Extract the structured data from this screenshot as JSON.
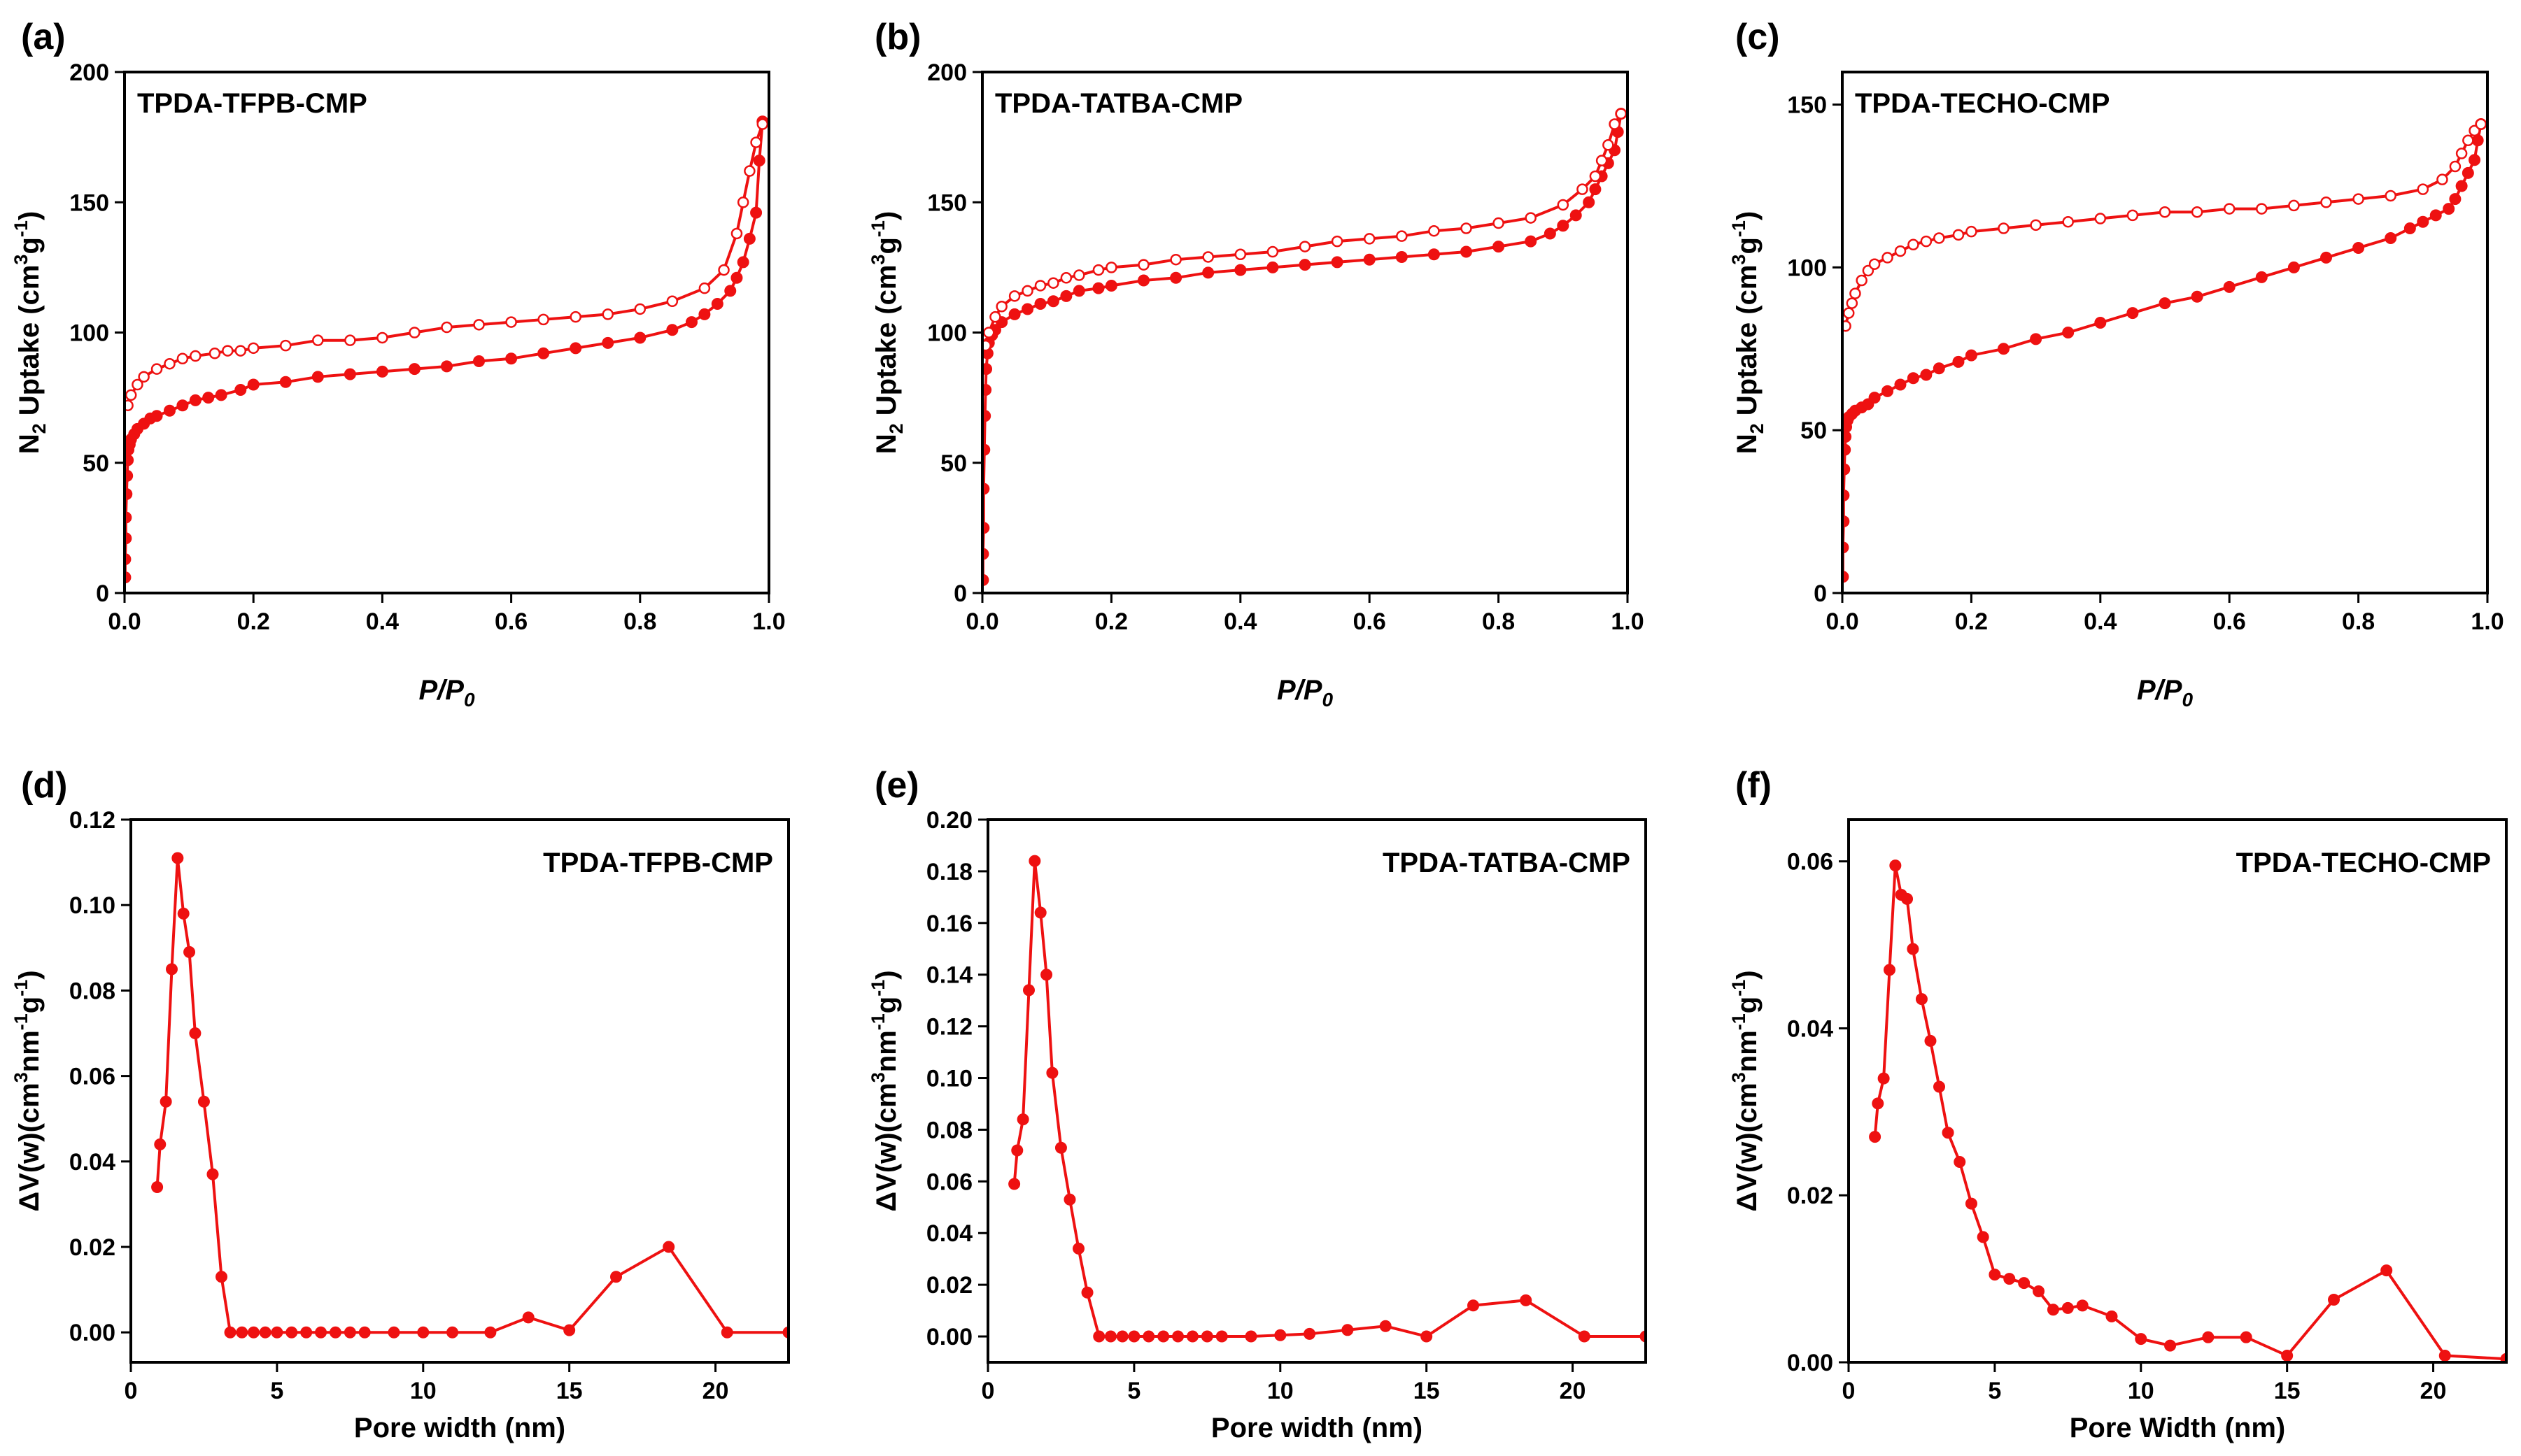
{
  "style": {
    "series_color": "#ee1111",
    "axis_color": "#000000",
    "background": "#ffffff"
  },
  "chart_data": [
    {
      "type": "line",
      "panel_label": "(a)",
      "title": "TPDA-TFPB-CMP",
      "title_position": "top-left",
      "xlabel_main": "P/P",
      "xlabel_sub": "0",
      "ylabel_parts": [
        "N",
        "2",
        " Uptake (cm",
        "3",
        "g",
        "-1",
        ")"
      ],
      "xlim": [
        0,
        1.0
      ],
      "ylim": [
        0,
        200
      ],
      "xticks": [
        0,
        0.2,
        0.4,
        0.6,
        0.8,
        1.0
      ],
      "xtick_labels": [
        "0.0",
        "0.2",
        "0.4",
        "0.6",
        "0.8",
        "1.0"
      ],
      "yticks": [
        0,
        50,
        100,
        150,
        200
      ],
      "ytick_labels": [
        "0",
        "50",
        "100",
        "150",
        "200"
      ],
      "series": [
        {
          "name": "adsorption",
          "marker": "filled",
          "x": [
            0.001,
            0.001,
            0.002,
            0.002,
            0.003,
            0.004,
            0.005,
            0.006,
            0.008,
            0.01,
            0.015,
            0.02,
            0.03,
            0.04,
            0.05,
            0.07,
            0.09,
            0.11,
            0.13,
            0.15,
            0.18,
            0.2,
            0.25,
            0.3,
            0.35,
            0.4,
            0.45,
            0.5,
            0.55,
            0.6,
            0.65,
            0.7,
            0.75,
            0.8,
            0.85,
            0.88,
            0.9,
            0.92,
            0.94,
            0.95,
            0.96,
            0.97,
            0.98,
            0.985,
            0.99
          ],
          "y": [
            6,
            13,
            21,
            29,
            38,
            45,
            51,
            55,
            57,
            59,
            61,
            63,
            65,
            67,
            68,
            70,
            72,
            74,
            75,
            76,
            78,
            80,
            81,
            83,
            84,
            85,
            86,
            87,
            89,
            90,
            92,
            94,
            96,
            98,
            101,
            104,
            107,
            111,
            116,
            121,
            127,
            136,
            146,
            166,
            181
          ]
        },
        {
          "name": "desorption",
          "marker": "open",
          "x": [
            0.005,
            0.01,
            0.02,
            0.03,
            0.05,
            0.07,
            0.09,
            0.11,
            0.14,
            0.16,
            0.18,
            0.2,
            0.25,
            0.3,
            0.35,
            0.4,
            0.45,
            0.5,
            0.55,
            0.6,
            0.65,
            0.7,
            0.75,
            0.8,
            0.85,
            0.9,
            0.93,
            0.95,
            0.96,
            0.97,
            0.98,
            0.99
          ],
          "y": [
            72,
            76,
            80,
            83,
            86,
            88,
            90,
            91,
            92,
            93,
            93,
            94,
            95,
            97,
            97,
            98,
            100,
            102,
            103,
            104,
            105,
            106,
            107,
            109,
            112,
            117,
            124,
            138,
            150,
            162,
            173,
            180
          ]
        }
      ]
    },
    {
      "type": "line",
      "panel_label": "(b)",
      "title": "TPDA-TATBA-CMP",
      "title_position": "top-left",
      "xlabel_main": "P/P",
      "xlabel_sub": "0",
      "ylabel_parts": [
        "N",
        "2",
        " Uptake (cm",
        "3",
        "g",
        "-1",
        ")"
      ],
      "xlim": [
        0,
        1.0
      ],
      "ylim": [
        0,
        200
      ],
      "xticks": [
        0,
        0.2,
        0.4,
        0.6,
        0.8,
        1.0
      ],
      "xtick_labels": [
        "0.0",
        "0.2",
        "0.4",
        "0.6",
        "0.8",
        "1.0"
      ],
      "yticks": [
        0,
        50,
        100,
        150,
        200
      ],
      "ytick_labels": [
        "0",
        "50",
        "100",
        "150",
        "200"
      ],
      "series": [
        {
          "name": "adsorption",
          "marker": "filled",
          "x": [
            0.001,
            0.001,
            0.002,
            0.002,
            0.003,
            0.004,
            0.005,
            0.006,
            0.008,
            0.01,
            0.015,
            0.02,
            0.03,
            0.05,
            0.07,
            0.09,
            0.11,
            0.13,
            0.15,
            0.18,
            0.2,
            0.25,
            0.3,
            0.35,
            0.4,
            0.45,
            0.5,
            0.55,
            0.6,
            0.65,
            0.7,
            0.75,
            0.8,
            0.85,
            0.88,
            0.9,
            0.92,
            0.94,
            0.95,
            0.96,
            0.97,
            0.98,
            0.985,
            0.99
          ],
          "y": [
            5,
            15,
            25,
            40,
            55,
            68,
            78,
            86,
            92,
            96,
            99,
            101,
            104,
            107,
            109,
            111,
            112,
            114,
            116,
            117,
            118,
            120,
            121,
            123,
            124,
            125,
            126,
            127,
            128,
            129,
            130,
            131,
            133,
            135,
            138,
            141,
            145,
            150,
            155,
            160,
            165,
            170,
            177,
            184
          ]
        },
        {
          "name": "desorption",
          "marker": "open",
          "x": [
            0.005,
            0.01,
            0.02,
            0.03,
            0.05,
            0.07,
            0.09,
            0.11,
            0.13,
            0.15,
            0.18,
            0.2,
            0.25,
            0.3,
            0.35,
            0.4,
            0.45,
            0.5,
            0.55,
            0.6,
            0.65,
            0.7,
            0.75,
            0.8,
            0.85,
            0.9,
            0.93,
            0.95,
            0.96,
            0.97,
            0.98,
            0.99
          ],
          "y": [
            95,
            100,
            106,
            110,
            114,
            116,
            118,
            119,
            121,
            122,
            124,
            125,
            126,
            128,
            129,
            130,
            131,
            133,
            135,
            136,
            137,
            139,
            140,
            142,
            144,
            149,
            155,
            160,
            166,
            172,
            180,
            184
          ]
        }
      ]
    },
    {
      "type": "line",
      "panel_label": "(c)",
      "title": "TPDA-TECHO-CMP",
      "title_position": "top-left",
      "xlabel_main": "P/P",
      "xlabel_sub": "0",
      "ylabel_parts": [
        "N",
        "2",
        " Uptake (cm",
        "3",
        "g",
        "-1",
        ")"
      ],
      "xlim": [
        0,
        1.0
      ],
      "ylim": [
        0,
        160
      ],
      "xticks": [
        0,
        0.2,
        0.4,
        0.6,
        0.8,
        1.0
      ],
      "xtick_labels": [
        "0.0",
        "0.2",
        "0.4",
        "0.6",
        "0.8",
        "1.0"
      ],
      "yticks": [
        0,
        50,
        100,
        150
      ],
      "ytick_labels": [
        "0",
        "50",
        "100",
        "150"
      ],
      "series": [
        {
          "name": "adsorption",
          "marker": "filled",
          "x": [
            0.001,
            0.001,
            0.002,
            0.002,
            0.003,
            0.004,
            0.005,
            0.006,
            0.008,
            0.01,
            0.015,
            0.02,
            0.03,
            0.04,
            0.05,
            0.07,
            0.09,
            0.11,
            0.13,
            0.15,
            0.18,
            0.2,
            0.25,
            0.3,
            0.35,
            0.4,
            0.45,
            0.5,
            0.55,
            0.6,
            0.65,
            0.7,
            0.75,
            0.8,
            0.85,
            0.88,
            0.9,
            0.92,
            0.94,
            0.95,
            0.96,
            0.97,
            0.98,
            0.985,
            0.99
          ],
          "y": [
            5,
            14,
            22,
            30,
            38,
            44,
            48,
            51,
            53,
            54,
            55,
            56,
            57,
            58,
            60,
            62,
            64,
            66,
            67,
            69,
            71,
            73,
            75,
            78,
            80,
            83,
            86,
            89,
            91,
            94,
            97,
            100,
            103,
            106,
            109,
            112,
            114,
            116,
            118,
            121,
            125,
            129,
            133,
            139,
            144
          ]
        },
        {
          "name": "desorption",
          "marker": "open",
          "x": [
            0.005,
            0.01,
            0.015,
            0.02,
            0.03,
            0.04,
            0.05,
            0.07,
            0.09,
            0.11,
            0.13,
            0.15,
            0.18,
            0.2,
            0.25,
            0.3,
            0.35,
            0.4,
            0.45,
            0.5,
            0.55,
            0.6,
            0.65,
            0.7,
            0.75,
            0.8,
            0.85,
            0.9,
            0.93,
            0.95,
            0.96,
            0.97,
            0.98,
            0.99
          ],
          "y": [
            82,
            86,
            89,
            92,
            96,
            99,
            101,
            103,
            105,
            107,
            108,
            109,
            110,
            111,
            112,
            113,
            114,
            115,
            116,
            117,
            117,
            118,
            118,
            119,
            120,
            121,
            122,
            124,
            127,
            131,
            135,
            139,
            142,
            144
          ]
        }
      ]
    },
    {
      "type": "line",
      "panel_label": "(d)",
      "title": "TPDA-TFPB-CMP",
      "title_position": "top-right",
      "xlabel_main": "Pore width (nm)",
      "ylabel_parts": [
        "ΔV(w)(cm",
        "3",
        "nm",
        "-1",
        "g",
        "-1",
        ")"
      ],
      "xlim": [
        0,
        22.5
      ],
      "ylim": [
        -0.007,
        0.12
      ],
      "xticks": [
        0,
        5,
        10,
        15,
        20
      ],
      "xtick_labels": [
        "0",
        "5",
        "10",
        "15",
        "20"
      ],
      "yticks": [
        0,
        0.02,
        0.04,
        0.06,
        0.08,
        0.1,
        0.12
      ],
      "ytick_labels": [
        "0.00",
        "0.02",
        "0.04",
        "0.06",
        "0.08",
        "0.10",
        "0.12"
      ],
      "series": [
        {
          "name": "pore size distribution",
          "marker": "filled",
          "x": [
            0.9,
            1.0,
            1.2,
            1.4,
            1.6,
            1.8,
            2.0,
            2.2,
            2.5,
            2.8,
            3.1,
            3.4,
            3.8,
            4.2,
            4.6,
            5.0,
            5.5,
            6.0,
            6.5,
            7.0,
            7.5,
            8.0,
            9.0,
            10.0,
            11.0,
            12.3,
            13.6,
            15.0,
            16.6,
            18.4,
            20.4,
            22.5
          ],
          "y": [
            0.034,
            0.044,
            0.054,
            0.085,
            0.111,
            0.098,
            0.089,
            0.07,
            0.054,
            0.037,
            0.013,
            0,
            0,
            0,
            0,
            0,
            0,
            0,
            0,
            0,
            0,
            0,
            0,
            0,
            0,
            0,
            0.0035,
            0.0005,
            0.013,
            0.02,
            0,
            0
          ]
        }
      ]
    },
    {
      "type": "line",
      "panel_label": "(e)",
      "title": "TPDA-TATBA-CMP",
      "title_position": "top-right",
      "xlabel_main": "Pore width (nm)",
      "ylabel_parts": [
        "ΔV(w)(cm",
        "3",
        "nm",
        "-1",
        "g",
        "-1",
        ")"
      ],
      "xlim": [
        0,
        22.5
      ],
      "ylim": [
        -0.01,
        0.2
      ],
      "xticks": [
        0,
        5,
        10,
        15,
        20
      ],
      "xtick_labels": [
        "0",
        "5",
        "10",
        "15",
        "20"
      ],
      "yticks": [
        0,
        0.02,
        0.04,
        0.06,
        0.08,
        0.1,
        0.12,
        0.14,
        0.16,
        0.18,
        0.2
      ],
      "ytick_labels": [
        "0.00",
        "0.02",
        "0.04",
        "0.06",
        "0.08",
        "0.10",
        "0.12",
        "0.14",
        "0.16",
        "0.18",
        "0.20"
      ],
      "series": [
        {
          "name": "pore size distribution",
          "marker": "filled",
          "x": [
            0.9,
            1.0,
            1.2,
            1.4,
            1.6,
            1.8,
            2.0,
            2.2,
            2.5,
            2.8,
            3.1,
            3.4,
            3.8,
            4.2,
            4.6,
            5.0,
            5.5,
            6.0,
            6.5,
            7.0,
            7.5,
            8.0,
            9.0,
            10.0,
            11.0,
            12.3,
            13.6,
            15.0,
            16.6,
            18.4,
            20.4,
            22.5
          ],
          "y": [
            0.059,
            0.072,
            0.084,
            0.134,
            0.184,
            0.164,
            0.14,
            0.102,
            0.073,
            0.053,
            0.034,
            0.017,
            0,
            0,
            0,
            0,
            0,
            0,
            0,
            0,
            0,
            0,
            0,
            0.0005,
            0.001,
            0.0025,
            0.004,
            0,
            0.012,
            0.014,
            0,
            0
          ]
        }
      ]
    },
    {
      "type": "line",
      "panel_label": "(f)",
      "title": "TPDA-TECHO-CMP",
      "title_position": "top-right",
      "xlabel_main": "Pore Width (nm)",
      "ylabel_parts": [
        "ΔV(w)(cm",
        "3",
        "nm",
        "-1",
        "g",
        "-1",
        ")"
      ],
      "xlim": [
        0,
        22.5
      ],
      "ylim": [
        0,
        0.065
      ],
      "xticks": [
        0,
        5,
        10,
        15,
        20
      ],
      "xtick_labels": [
        "0",
        "5",
        "10",
        "15",
        "20"
      ],
      "yticks": [
        0,
        0.02,
        0.04,
        0.06
      ],
      "ytick_labels": [
        "0.00",
        "0.02",
        "0.04",
        "0.06"
      ],
      "series": [
        {
          "name": "pore size distribution",
          "marker": "filled",
          "x": [
            0.9,
            1.0,
            1.2,
            1.4,
            1.6,
            1.8,
            2.0,
            2.2,
            2.5,
            2.8,
            3.1,
            3.4,
            3.8,
            4.2,
            4.6,
            5.0,
            5.5,
            6.0,
            6.5,
            7.0,
            7.5,
            8.0,
            9.0,
            10.0,
            11.0,
            12.3,
            13.6,
            15.0,
            16.6,
            18.4,
            20.4,
            22.5
          ],
          "y": [
            0.027,
            0.031,
            0.034,
            0.047,
            0.0595,
            0.056,
            0.0555,
            0.0495,
            0.0435,
            0.0385,
            0.033,
            0.0275,
            0.024,
            0.019,
            0.015,
            0.0105,
            0.01,
            0.0095,
            0.0085,
            0.0063,
            0.0065,
            0.0068,
            0.0055,
            0.0028,
            0.002,
            0.003,
            0.003,
            0.0008,
            0.0075,
            0.011,
            0.0008,
            0.0004
          ]
        }
      ]
    }
  ]
}
